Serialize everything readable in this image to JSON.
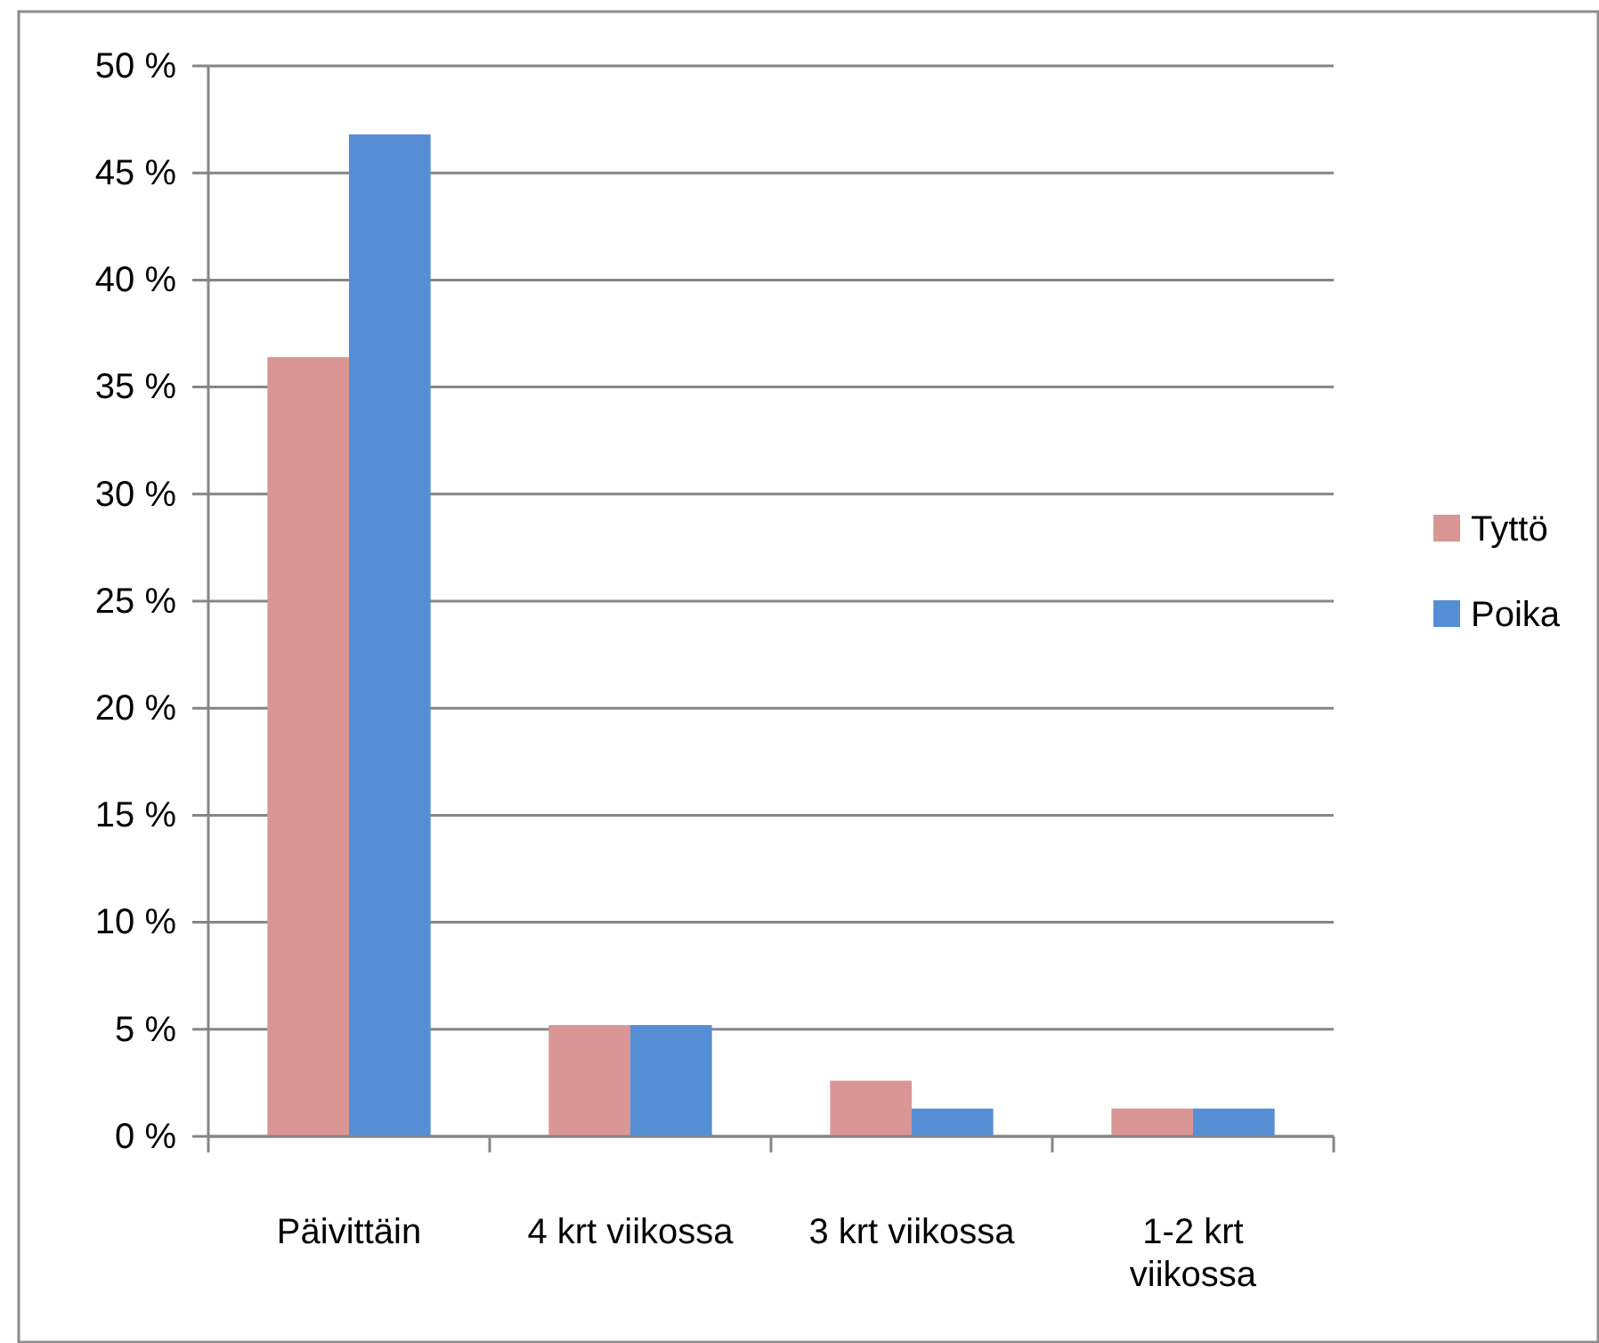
{
  "chart_data": {
    "type": "bar",
    "categories": [
      "Päivittäin",
      "4 krt viikossa",
      "3 krt viikossa",
      "1-2 krt viikossa"
    ],
    "series": [
      {
        "name": "Tyttö",
        "color": "#d99694",
        "values": [
          36.4,
          5.2,
          2.6,
          1.3
        ]
      },
      {
        "name": "Poika",
        "color": "#558ed5",
        "values": [
          46.8,
          5.2,
          1.3,
          1.3
        ]
      }
    ],
    "ylim": [
      0,
      50
    ],
    "yticks": [
      {
        "value": 0,
        "label": "0 %"
      },
      {
        "value": 5,
        "label": "5 %"
      },
      {
        "value": 10,
        "label": "10 %"
      },
      {
        "value": 15,
        "label": "15 %"
      },
      {
        "value": 20,
        "label": "20 %"
      },
      {
        "value": 25,
        "label": "25 %"
      },
      {
        "value": 30,
        "label": "30 %"
      },
      {
        "value": 35,
        "label": "35 %"
      },
      {
        "value": 40,
        "label": "40 %"
      },
      {
        "value": 45,
        "label": "45 %"
      },
      {
        "value": 50,
        "label": "50 %"
      }
    ],
    "grid": "y",
    "legend": "right"
  }
}
